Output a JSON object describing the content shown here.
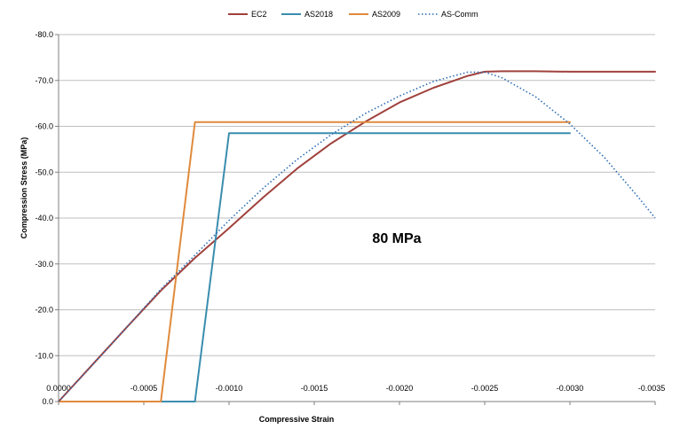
{
  "chart_data": {
    "type": "line",
    "title": "",
    "xlabel": "Compressive Strain",
    "ylabel": "Compression Stress (MPa)",
    "xlim": [
      0,
      -0.0035
    ],
    "ylim": [
      0,
      80
    ],
    "x_ticks": [
      0,
      -0.0005,
      -0.001,
      -0.0015,
      -0.002,
      -0.0025,
      -0.003,
      -0.0035
    ],
    "x_tick_labels": [
      "0.0000",
      "-0.0005",
      "-0.0010",
      "-0.0015",
      "-0.0020",
      "-0.0025",
      "-0.0030",
      "-0.0035"
    ],
    "y_ticks": [
      0,
      10,
      20,
      30,
      40,
      50,
      60,
      70,
      80
    ],
    "y_tick_labels": [
      "0.0",
      "-10.0",
      "-20.0",
      "-30.0",
      "-40.0",
      "-50.0",
      "-60.0",
      "-70.0",
      "-80.0"
    ],
    "grid": "horizontal",
    "legend_position": "top",
    "annotation": "80 MPa",
    "series": [
      {
        "name": "EC2",
        "color": "#A0413C",
        "dash": "solid",
        "x": [
          0,
          -0.0002,
          -0.0004,
          -0.0006,
          -0.0008,
          -0.001,
          -0.0012,
          -0.0014,
          -0.0016,
          -0.0018,
          -0.002,
          -0.0022,
          -0.0024,
          -0.0025,
          -0.0026,
          -0.0028,
          -0.003,
          -0.0032,
          -0.0035
        ],
        "y": [
          0,
          8.1,
          16.2,
          24.2,
          31.3,
          37.8,
          44.5,
          50.8,
          56.3,
          61.0,
          65.2,
          68.4,
          71.0,
          71.9,
          72.0,
          72.0,
          71.9,
          71.9,
          71.9
        ]
      },
      {
        "name": "AS2018",
        "color": "#3A8DAE",
        "dash": "solid",
        "x": [
          0,
          -0.0008,
          -0.001,
          -0.003
        ],
        "y": [
          0,
          0,
          58.5,
          58.5
        ]
      },
      {
        "name": "AS2009",
        "color": "#E08A3C",
        "dash": "solid",
        "x": [
          0,
          -0.0006,
          -0.0008,
          -0.003
        ],
        "y": [
          0,
          0,
          60.9,
          60.9
        ]
      },
      {
        "name": "AS-Comm",
        "color": "#2E6DB4",
        "dash": "dotted",
        "x": [
          0,
          -0.0002,
          -0.0004,
          -0.0006,
          -0.0008,
          -0.001,
          -0.0012,
          -0.0014,
          -0.0016,
          -0.0018,
          -0.002,
          -0.0022,
          -0.0024,
          -0.0025,
          -0.0026,
          -0.0028,
          -0.003,
          -0.0032,
          -0.0034,
          -0.0035
        ],
        "y": [
          0,
          8.0,
          16.2,
          24.5,
          31.9,
          39.5,
          46.5,
          52.8,
          58.2,
          62.8,
          66.6,
          69.8,
          71.8,
          71.8,
          70.6,
          66.4,
          60.5,
          53.3,
          44.6,
          40.0
        ]
      }
    ]
  }
}
